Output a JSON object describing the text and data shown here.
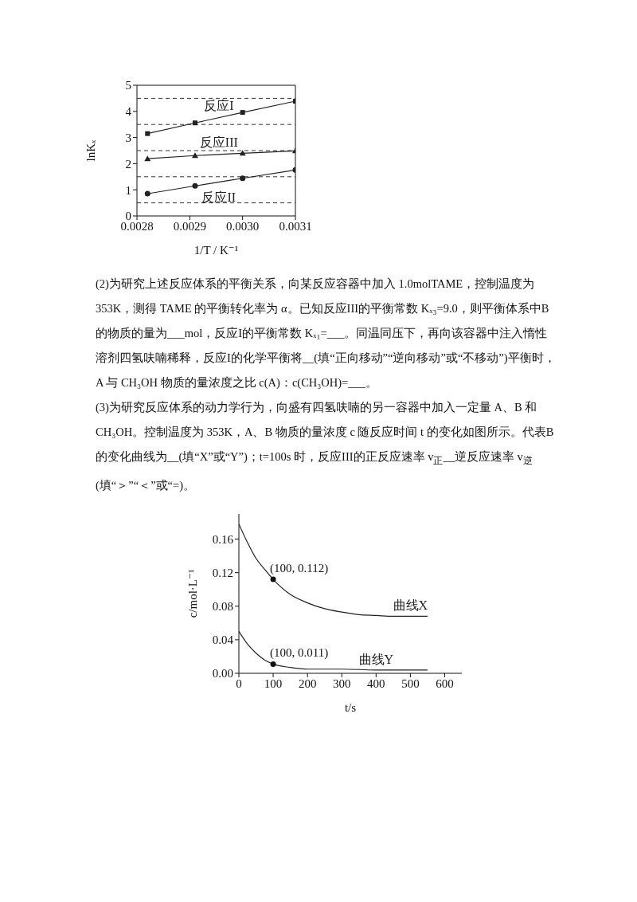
{
  "chart_data": [
    {
      "type": "line",
      "xlabel": "1/T / K⁻¹",
      "ylabel": "lnKₓ",
      "xlim": [
        0.0028,
        0.0031
      ],
      "xticks": [
        0.0028,
        0.0029,
        {
          "value": 0.003,
          "label": "0.0030"
        },
        0.0031
      ],
      "ylim": [
        0,
        5
      ],
      "yticks": [
        0,
        1,
        2,
        3,
        4,
        5
      ],
      "grid": false,
      "ref_lines": [
        {
          "axis": "y",
          "value": 0.5,
          "line_style": "dashed",
          "color": "#333333"
        },
        {
          "axis": "y",
          "value": 1.5,
          "line_style": "dashed",
          "color": "#333333"
        },
        {
          "axis": "y",
          "value": 2.5,
          "line_style": "dashed",
          "color": "#333333"
        },
        {
          "axis": "y",
          "value": 3.5,
          "line_style": "dashed",
          "color": "#333333"
        },
        {
          "axis": "y",
          "value": 4.5,
          "line_style": "dashed",
          "color": "#333333"
        }
      ],
      "x": [
        0.00282,
        0.00291,
        0.003,
        0.0031
      ],
      "series": [
        {
          "name": "反应I",
          "color": "#222222",
          "marker": "square",
          "values": [
            3.15,
            3.56,
            3.96,
            4.39
          ]
        },
        {
          "name": "反应III",
          "color": "#222222",
          "marker": "triangle",
          "values": [
            2.19,
            2.31,
            2.4,
            2.49
          ]
        },
        {
          "name": "反应II",
          "color": "#222222",
          "marker": "circle",
          "values": [
            0.85,
            1.15,
            1.44,
            1.76
          ]
        }
      ]
    },
    {
      "type": "other",
      "annotations": [
        "(2)为研究上述反应体系的平衡关系，向某反应容器中加入 1.0molTAME，控制温度为353K，测得 TAME 的平衡转化率为 α。已知反应III的平衡常数 Kₓ₃=9.0，则平衡体系中B 的物质的量为___mol，反应I的平衡常数 Kₓ₁=___。同温同压下，再向该容器中注入惰性溶剂四氢呋喃稀释，反应I的化学平衡将__(填“正向移动”“逆向移动”或“不移动”)平衡时，A 与 CH₃OH 物质的量浓度之比 c(A)：c(CH₃OH)=___。",
        "(3)为研究反应体系的动力学行为，向盛有四氢呋喃的另一容器中加入一定量 A、B 和CH₃OH。控制温度为 353K，A、B 物质的量浓度 c 随反应时间 t 的变化如图所示。代表B 的变化曲线为__(填“X”或“Y”)；t=100s 时，反应III的正反应速率 v$_{正}$__逆反应速率 v$_{逆}$(填“＞”“＜”或“=)。"
      ]
    },
    {
      "type": "line",
      "xlabel": "t/s",
      "ylabel": "c/mol·L⁻¹",
      "xlim": [
        0,
        650
      ],
      "xticks": [
        0,
        100,
        200,
        300,
        400,
        500,
        600
      ],
      "ylim": [
        0,
        0.19
      ],
      "yticks": [
        {
          "value": 0,
          "label": "0.00"
        },
        {
          "value": 0.04,
          "label": "0.04"
        },
        {
          "value": 0.08,
          "label": "0.08"
        },
        {
          "value": 0.12,
          "label": "0.12"
        },
        {
          "value": 0.16,
          "label": "0.16"
        }
      ],
      "grid": false,
      "annotations": [
        {
          "text": "(100, 0.112)",
          "x": 100,
          "y": 0.112
        },
        {
          "text": "(100, 0.011)",
          "x": 100,
          "y": 0.011
        }
      ],
      "series": [
        {
          "name": "曲线X",
          "color": "#222222",
          "marker": "none",
          "x": [
            0,
            25,
            50,
            75,
            100,
            150,
            200,
            250,
            300,
            350,
            400,
            450,
            500,
            550
          ],
          "values": [
            0.178,
            0.156,
            0.137,
            0.124,
            0.112,
            0.094,
            0.084,
            0.077,
            0.073,
            0.07,
            0.069,
            0.068,
            0.068,
            0.068
          ]
        },
        {
          "name": "曲线Y",
          "color": "#222222",
          "marker": "none",
          "x": [
            0,
            25,
            50,
            75,
            100,
            150,
            200,
            300,
            400,
            550
          ],
          "values": [
            0.05,
            0.035,
            0.024,
            0.016,
            0.011,
            0.007,
            0.005,
            0.005,
            0.004,
            0.004
          ]
        },
        {
          "type": "scatter",
          "color": "#111111",
          "marker": "circle",
          "x": [
            100,
            100
          ],
          "values": [
            0.112,
            0.011
          ]
        }
      ]
    }
  ]
}
